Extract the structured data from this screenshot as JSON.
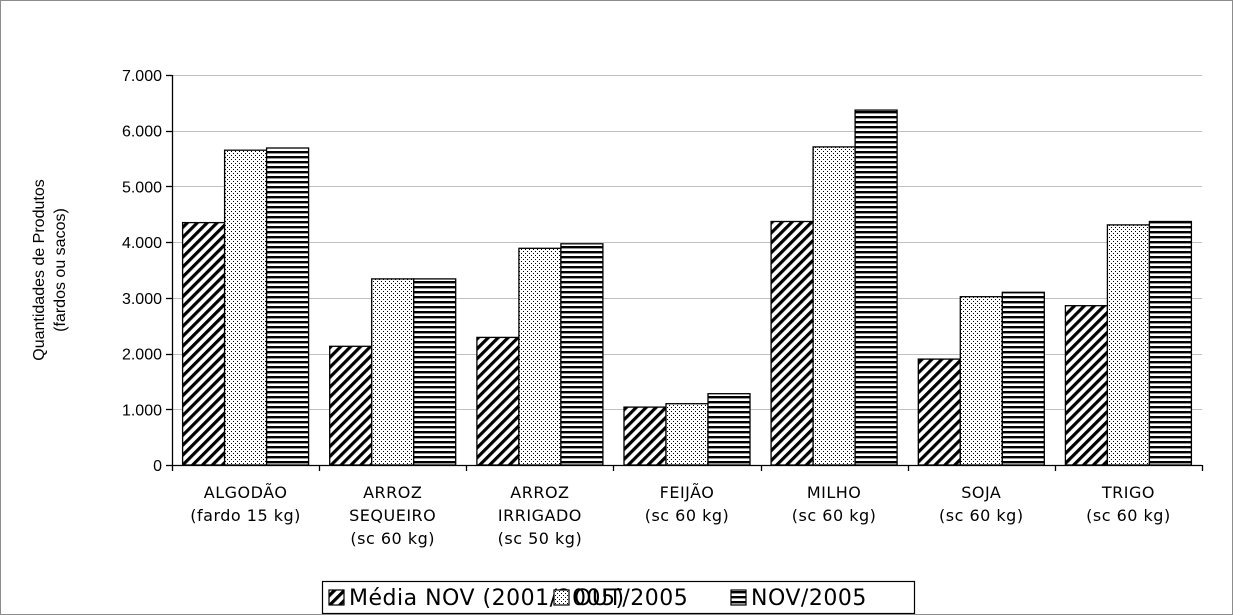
{
  "chart_data": {
    "type": "bar",
    "categories": [
      [
        "ALGODÃO",
        "(fardo 15 kg)"
      ],
      [
        "ARROZ",
        "SEQUEIRO",
        "(sc 60 kg)"
      ],
      [
        "ARROZ",
        "IRRIGADO",
        "(sc 50 kg)"
      ],
      [
        "FEIJÃO",
        "(sc 60 kg)"
      ],
      [
        "MILHO",
        "(sc 60 kg)"
      ],
      [
        "SOJA",
        "(sc 60 kg)"
      ],
      [
        "TRIGO",
        "(sc 60 kg)"
      ]
    ],
    "series": [
      {
        "name": "Média NOV (2001/2005)",
        "pattern": "diagonal-hatch",
        "values": [
          4350,
          2130,
          2290,
          1040,
          4370,
          1900,
          2860
        ]
      },
      {
        "name": "OUT/2005",
        "pattern": "dots",
        "values": [
          5650,
          3340,
          3890,
          1100,
          5710,
          3020,
          4310
        ]
      },
      {
        "name": "NOV/2005",
        "pattern": "horizontal-lines",
        "values": [
          5690,
          3340,
          3970,
          1280,
          6370,
          3100,
          4370
        ]
      }
    ],
    "ylabel": [
      "Quantidades de Produtos",
      "(fardos ou sacos)"
    ],
    "ylim": [
      0,
      7000
    ],
    "yticks": [
      "0",
      "1.000",
      "2.000",
      "3.000",
      "4.000",
      "5.000",
      "6.000",
      "7.000"
    ],
    "ytick_values": [
      0,
      1000,
      2000,
      3000,
      4000,
      5000,
      6000,
      7000
    ],
    "grid": true,
    "legend_position": "bottom-center",
    "colors": {
      "bar_stroke": "#000000",
      "grid": "#c0c0c0",
      "background": "#ffffff"
    }
  }
}
